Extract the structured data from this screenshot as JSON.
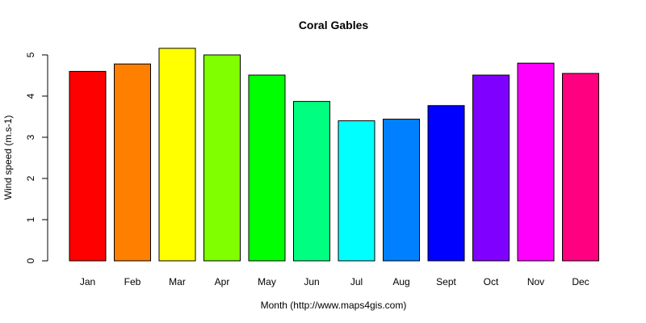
{
  "chart_data": {
    "type": "bar",
    "title": "Coral Gables",
    "xlabel": "Month (http://www.maps4gis.com)",
    "ylabel": "Wind speed (m.s-1)",
    "ylim": [
      0,
      5.25
    ],
    "yticks": [
      "0",
      "1",
      "2",
      "3",
      "4",
      "5"
    ],
    "grid": false,
    "legend": "none",
    "categories": [
      "Jan",
      "Feb",
      "Mar",
      "Apr",
      "May",
      "Jun",
      "Jul",
      "Aug",
      "Sept",
      "Oct",
      "Nov",
      "Dec"
    ],
    "values": [
      4.6,
      4.78,
      5.16,
      5.0,
      4.51,
      3.87,
      3.4,
      3.44,
      3.77,
      4.51,
      4.8,
      4.55
    ],
    "colors": [
      "#FF0000",
      "#FF8000",
      "#FFFF00",
      "#80FF00",
      "#00FF00",
      "#00FF80",
      "#00FFFF",
      "#0080FF",
      "#0000FF",
      "#8000FF",
      "#FF00FF",
      "#FF0080"
    ],
    "bar_outline": "#000000"
  }
}
